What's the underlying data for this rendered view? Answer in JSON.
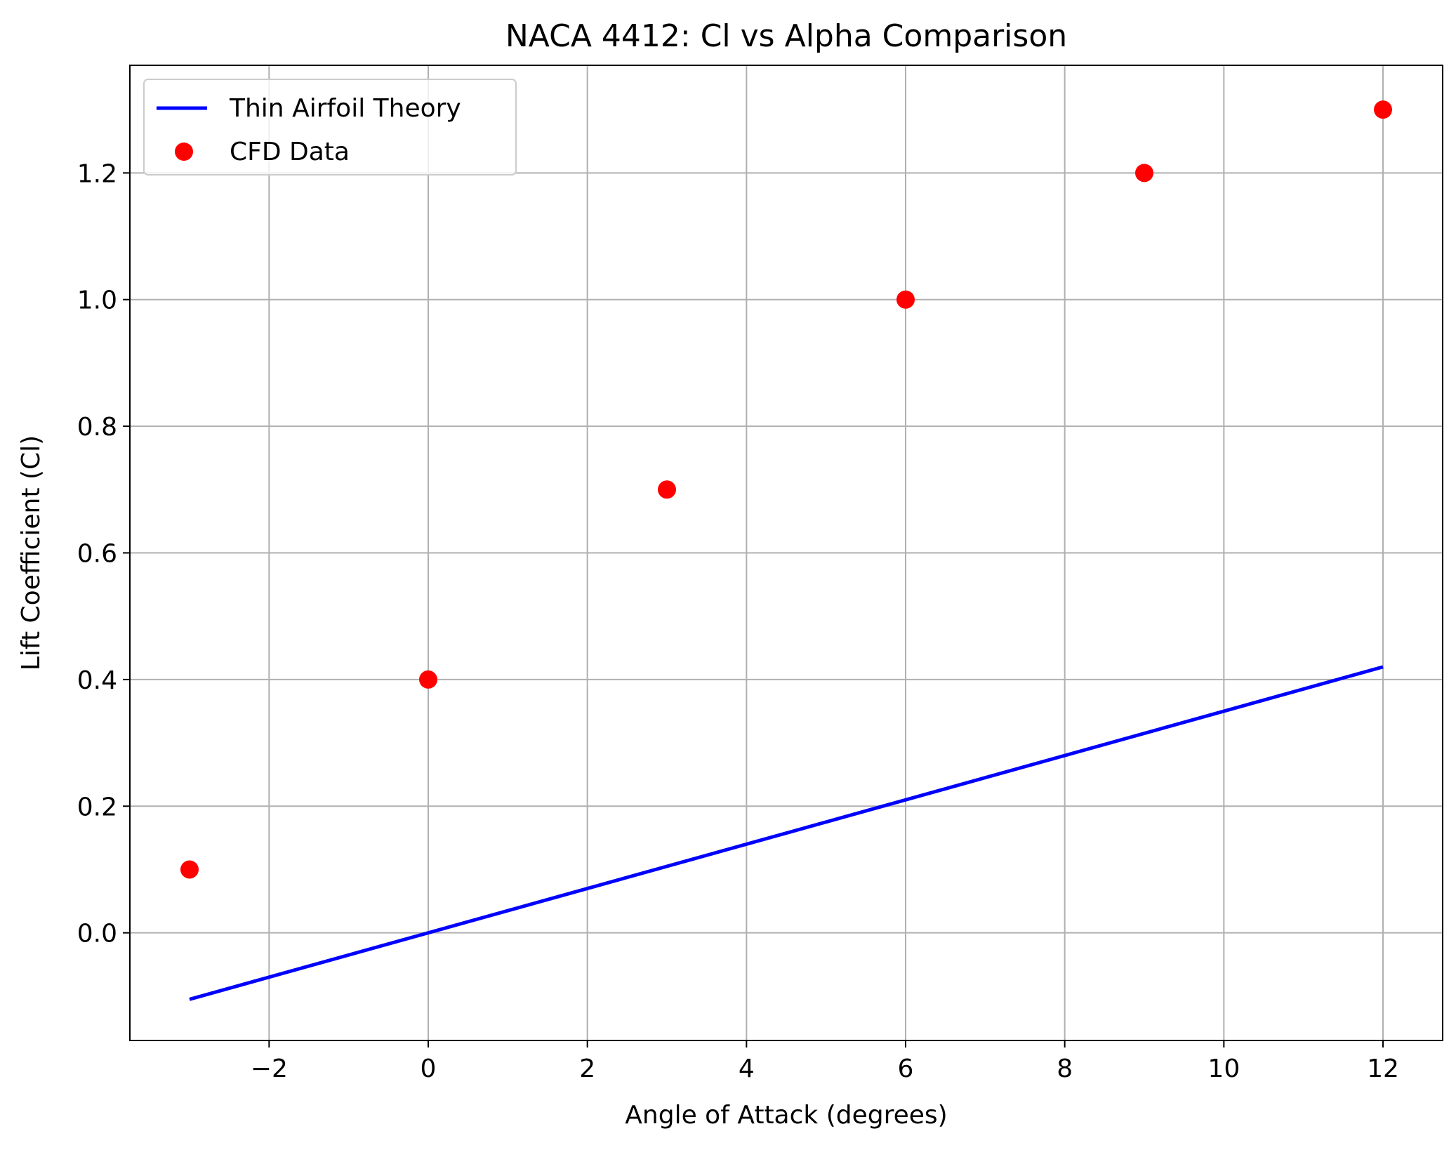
{
  "chart_data": {
    "type": "line",
    "title": "NACA 4412: Cl vs Alpha Comparison",
    "xlabel": "Angle of Attack (degrees)",
    "ylabel": "Lift Coefficient (Cl)",
    "xlim": [
      -3.75,
      12.75
    ],
    "ylim": [
      -0.17,
      1.37
    ],
    "xticks": [
      -2,
      0,
      2,
      4,
      6,
      8,
      10,
      12
    ],
    "xtick_labels": [
      "−2",
      "0",
      "2",
      "4",
      "6",
      "8",
      "10",
      "12"
    ],
    "yticks": [
      0.0,
      0.2,
      0.4,
      0.6,
      0.8,
      1.0,
      1.2
    ],
    "ytick_labels": [
      "0.0",
      "0.2",
      "0.4",
      "0.6",
      "0.8",
      "1.0",
      "1.2"
    ],
    "grid": true,
    "legend_position": "top-left",
    "series": [
      {
        "name": "Thin Airfoil Theory",
        "kind": "line",
        "color": "#0000ff",
        "x": [
          -3,
          12
        ],
        "y": [
          -0.105,
          0.42
        ]
      },
      {
        "name": "CFD Data",
        "kind": "scatter",
        "color": "#ff0000",
        "x": [
          -3,
          0,
          3,
          6,
          9,
          12
        ],
        "y": [
          0.1,
          0.4,
          0.7,
          1.0,
          1.2,
          1.3
        ]
      }
    ]
  }
}
